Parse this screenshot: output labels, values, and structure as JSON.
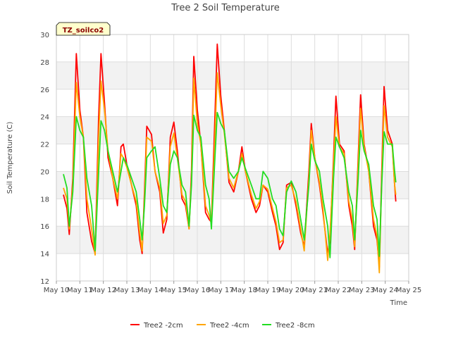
{
  "chart_data": {
    "type": "line",
    "title": "Tree 2 Soil Temperature",
    "xlabel": "Time",
    "ylabel": "Soil Temperature (C)",
    "annotation": "TZ_soilco2",
    "xlim": [
      0,
      15
    ],
    "ylim": [
      12,
      30
    ],
    "x_ticks": [
      {
        "x": 0,
        "label": "May 10"
      },
      {
        "x": 1,
        "label": "May 11"
      },
      {
        "x": 2,
        "label": "May 12"
      },
      {
        "x": 3,
        "label": "May 13"
      },
      {
        "x": 4,
        "label": "May 14"
      },
      {
        "x": 5,
        "label": "May 15"
      },
      {
        "x": 6,
        "label": "May 16"
      },
      {
        "x": 7,
        "label": "May 17"
      },
      {
        "x": 8,
        "label": "May 18"
      },
      {
        "x": 9,
        "label": "May 19"
      },
      {
        "x": 10,
        "label": "May 20"
      },
      {
        "x": 11,
        "label": "May 21"
      },
      {
        "x": 12,
        "label": "May 22"
      },
      {
        "x": 13,
        "label": "May 23"
      },
      {
        "x": 14,
        "label": "May 24"
      },
      {
        "x": 15,
        "label": "May 25"
      }
    ],
    "y_ticks": [
      12,
      14,
      16,
      18,
      20,
      22,
      24,
      26,
      28,
      30
    ],
    "grid": true,
    "legend_position": "bottom-center",
    "series": [
      {
        "name": "Tree2 -2cm",
        "color": "#ff0000",
        "points": [
          [
            0.3,
            18.3
          ],
          [
            0.45,
            17.3
          ],
          [
            0.55,
            15.4
          ],
          [
            0.7,
            19.5
          ],
          [
            0.85,
            28.6
          ],
          [
            1.0,
            24.5
          ],
          [
            1.15,
            22.5
          ],
          [
            1.3,
            17.0
          ],
          [
            1.5,
            14.9
          ],
          [
            1.65,
            14.0
          ],
          [
            1.8,
            24.0
          ],
          [
            1.9,
            28.6
          ],
          [
            2.05,
            25.0
          ],
          [
            2.2,
            21.0
          ],
          [
            2.4,
            19.5
          ],
          [
            2.6,
            17.5
          ],
          [
            2.75,
            21.8
          ],
          [
            2.85,
            22.0
          ],
          [
            3.0,
            20.5
          ],
          [
            3.2,
            19.0
          ],
          [
            3.4,
            17.5
          ],
          [
            3.55,
            15.0
          ],
          [
            3.65,
            14.0
          ],
          [
            3.75,
            18.5
          ],
          [
            3.85,
            23.3
          ],
          [
            4.05,
            22.7
          ],
          [
            4.2,
            20.0
          ],
          [
            4.4,
            18.5
          ],
          [
            4.55,
            15.5
          ],
          [
            4.7,
            16.5
          ],
          [
            4.85,
            22.5
          ],
          [
            5.0,
            23.6
          ],
          [
            5.15,
            21.5
          ],
          [
            5.35,
            18.0
          ],
          [
            5.5,
            17.5
          ],
          [
            5.65,
            15.8
          ],
          [
            5.75,
            20.0
          ],
          [
            5.85,
            28.4
          ],
          [
            6.0,
            24.5
          ],
          [
            6.15,
            22.0
          ],
          [
            6.35,
            17.0
          ],
          [
            6.5,
            16.5
          ],
          [
            6.6,
            16.3
          ],
          [
            6.75,
            24.0
          ],
          [
            6.85,
            29.3
          ],
          [
            7.0,
            25.5
          ],
          [
            7.15,
            23.0
          ],
          [
            7.35,
            19.2
          ],
          [
            7.55,
            18.5
          ],
          [
            7.75,
            20.0
          ],
          [
            7.9,
            21.8
          ],
          [
            8.05,
            20.0
          ],
          [
            8.3,
            18.0
          ],
          [
            8.5,
            17.0
          ],
          [
            8.65,
            17.5
          ],
          [
            8.8,
            19.0
          ],
          [
            9.0,
            18.5
          ],
          [
            9.2,
            17.0
          ],
          [
            9.35,
            16.0
          ],
          [
            9.5,
            14.3
          ],
          [
            9.65,
            14.8
          ],
          [
            9.8,
            19.0
          ],
          [
            10.0,
            19.2
          ],
          [
            10.2,
            17.5
          ],
          [
            10.4,
            15.5
          ],
          [
            10.55,
            14.5
          ],
          [
            10.75,
            20.0
          ],
          [
            10.85,
            23.5
          ],
          [
            11.0,
            21.0
          ],
          [
            11.2,
            19.0
          ],
          [
            11.35,
            17.0
          ],
          [
            11.55,
            14.0
          ],
          [
            11.65,
            15.0
          ],
          [
            11.8,
            21.0
          ],
          [
            11.9,
            25.5
          ],
          [
            12.05,
            22.0
          ],
          [
            12.25,
            21.5
          ],
          [
            12.45,
            17.5
          ],
          [
            12.6,
            16.0
          ],
          [
            12.7,
            14.3
          ],
          [
            12.85,
            21.0
          ],
          [
            12.95,
            25.6
          ],
          [
            13.1,
            22.0
          ],
          [
            13.3,
            20.0
          ],
          [
            13.5,
            16.0
          ],
          [
            13.65,
            15.0
          ],
          [
            13.75,
            13.0
          ],
          [
            13.85,
            20.0
          ],
          [
            13.95,
            26.2
          ],
          [
            14.1,
            23.0
          ],
          [
            14.3,
            22.0
          ],
          [
            14.4,
            19.0
          ],
          [
            14.45,
            17.8
          ]
        ]
      },
      {
        "name": "Tree2 -4cm",
        "color": "#ffa500",
        "points": [
          [
            0.3,
            18.8
          ],
          [
            0.45,
            18.0
          ],
          [
            0.55,
            15.8
          ],
          [
            0.7,
            19.0
          ],
          [
            0.85,
            26.5
          ],
          [
            1.0,
            24.0
          ],
          [
            1.15,
            22.5
          ],
          [
            1.3,
            18.0
          ],
          [
            1.5,
            15.8
          ],
          [
            1.65,
            13.9
          ],
          [
            1.8,
            22.5
          ],
          [
            1.9,
            26.6
          ],
          [
            2.05,
            24.5
          ],
          [
            2.2,
            21.5
          ],
          [
            2.4,
            19.5
          ],
          [
            2.6,
            18.0
          ],
          [
            2.75,
            21.3
          ],
          [
            2.85,
            21.0
          ],
          [
            3.0,
            20.3
          ],
          [
            3.2,
            19.0
          ],
          [
            3.4,
            17.8
          ],
          [
            3.55,
            15.5
          ],
          [
            3.65,
            14.2
          ],
          [
            3.75,
            18.0
          ],
          [
            3.85,
            22.5
          ],
          [
            4.05,
            22.2
          ],
          [
            4.2,
            20.0
          ],
          [
            4.4,
            18.8
          ],
          [
            4.55,
            16.2
          ],
          [
            4.7,
            16.8
          ],
          [
            4.85,
            21.8
          ],
          [
            5.0,
            22.8
          ],
          [
            5.15,
            21.0
          ],
          [
            5.35,
            18.3
          ],
          [
            5.5,
            17.8
          ],
          [
            5.65,
            15.8
          ],
          [
            5.75,
            19.5
          ],
          [
            5.85,
            26.8
          ],
          [
            6.0,
            23.5
          ],
          [
            6.15,
            22.0
          ],
          [
            6.35,
            17.5
          ],
          [
            6.5,
            16.8
          ],
          [
            6.6,
            16.2
          ],
          [
            6.75,
            22.5
          ],
          [
            6.85,
            27.2
          ],
          [
            7.0,
            24.8
          ],
          [
            7.15,
            22.8
          ],
          [
            7.35,
            19.5
          ],
          [
            7.55,
            18.8
          ],
          [
            7.75,
            20.0
          ],
          [
            7.9,
            21.3
          ],
          [
            8.05,
            20.0
          ],
          [
            8.3,
            18.3
          ],
          [
            8.5,
            17.3
          ],
          [
            8.65,
            17.8
          ],
          [
            8.8,
            19.0
          ],
          [
            9.0,
            18.7
          ],
          [
            9.2,
            17.3
          ],
          [
            9.35,
            16.3
          ],
          [
            9.5,
            14.8
          ],
          [
            9.65,
            15.0
          ],
          [
            9.8,
            18.8
          ],
          [
            10.0,
            19.0
          ],
          [
            10.2,
            17.8
          ],
          [
            10.4,
            15.8
          ],
          [
            10.55,
            14.2
          ],
          [
            10.75,
            19.5
          ],
          [
            10.85,
            23.0
          ],
          [
            11.0,
            21.0
          ],
          [
            11.2,
            19.2
          ],
          [
            11.35,
            17.3
          ],
          [
            11.55,
            13.5
          ],
          [
            11.65,
            15.5
          ],
          [
            11.8,
            20.5
          ],
          [
            11.9,
            24.0
          ],
          [
            12.05,
            21.8
          ],
          [
            12.25,
            21.3
          ],
          [
            12.45,
            17.8
          ],
          [
            12.6,
            16.5
          ],
          [
            12.7,
            14.5
          ],
          [
            12.85,
            20.5
          ],
          [
            12.95,
            24.6
          ],
          [
            13.1,
            21.8
          ],
          [
            13.3,
            20.0
          ],
          [
            13.5,
            16.5
          ],
          [
            13.65,
            15.3
          ],
          [
            13.75,
            12.6
          ],
          [
            13.85,
            19.5
          ],
          [
            13.95,
            24.8
          ],
          [
            14.1,
            22.5
          ],
          [
            14.3,
            21.8
          ],
          [
            14.4,
            19.0
          ],
          [
            14.45,
            18.3
          ]
        ]
      },
      {
        "name": "Tree2 -8cm",
        "color": "#22dd22",
        "points": [
          [
            0.3,
            19.8
          ],
          [
            0.45,
            18.8
          ],
          [
            0.55,
            16.0
          ],
          [
            0.7,
            18.5
          ],
          [
            0.85,
            24.0
          ],
          [
            1.0,
            23.0
          ],
          [
            1.15,
            22.5
          ],
          [
            1.3,
            19.5
          ],
          [
            1.5,
            17.5
          ],
          [
            1.65,
            14.2
          ],
          [
            1.8,
            20.0
          ],
          [
            1.9,
            23.7
          ],
          [
            2.05,
            23.0
          ],
          [
            2.2,
            21.5
          ],
          [
            2.4,
            20.0
          ],
          [
            2.6,
            18.5
          ],
          [
            2.75,
            20.0
          ],
          [
            2.85,
            21.0
          ],
          [
            3.0,
            20.5
          ],
          [
            3.2,
            19.5
          ],
          [
            3.4,
            18.5
          ],
          [
            3.55,
            16.5
          ],
          [
            3.65,
            15.0
          ],
          [
            3.75,
            17.5
          ],
          [
            3.85,
            21.0
          ],
          [
            4.05,
            21.5
          ],
          [
            4.2,
            21.8
          ],
          [
            4.4,
            19.5
          ],
          [
            4.55,
            17.5
          ],
          [
            4.7,
            17.0
          ],
          [
            4.85,
            20.5
          ],
          [
            5.0,
            21.5
          ],
          [
            5.15,
            21.0
          ],
          [
            5.35,
            19.0
          ],
          [
            5.5,
            18.5
          ],
          [
            5.65,
            16.0
          ],
          [
            5.75,
            19.0
          ],
          [
            5.85,
            24.1
          ],
          [
            6.0,
            23.0
          ],
          [
            6.15,
            22.5
          ],
          [
            6.35,
            19.0
          ],
          [
            6.5,
            18.0
          ],
          [
            6.6,
            15.8
          ],
          [
            6.75,
            21.0
          ],
          [
            6.85,
            24.3
          ],
          [
            7.0,
            23.5
          ],
          [
            7.15,
            23.0
          ],
          [
            7.35,
            20.0
          ],
          [
            7.55,
            19.5
          ],
          [
            7.75,
            20.0
          ],
          [
            7.9,
            21.0
          ],
          [
            8.05,
            20.2
          ],
          [
            8.3,
            19.0
          ],
          [
            8.5,
            18.0
          ],
          [
            8.65,
            18.0
          ],
          [
            8.8,
            20.0
          ],
          [
            9.0,
            19.5
          ],
          [
            9.2,
            18.0
          ],
          [
            9.35,
            17.5
          ],
          [
            9.5,
            15.8
          ],
          [
            9.65,
            15.3
          ],
          [
            9.8,
            18.5
          ],
          [
            10.0,
            19.3
          ],
          [
            10.2,
            18.5
          ],
          [
            10.4,
            16.5
          ],
          [
            10.55,
            15.0
          ],
          [
            10.75,
            19.0
          ],
          [
            10.85,
            22.0
          ],
          [
            11.0,
            20.8
          ],
          [
            11.2,
            20.0
          ],
          [
            11.35,
            18.0
          ],
          [
            11.55,
            16.0
          ],
          [
            11.65,
            13.7
          ],
          [
            11.8,
            19.5
          ],
          [
            11.9,
            22.5
          ],
          [
            12.05,
            21.8
          ],
          [
            12.25,
            21.0
          ],
          [
            12.45,
            18.5
          ],
          [
            12.6,
            17.5
          ],
          [
            12.7,
            15.0
          ],
          [
            12.85,
            19.5
          ],
          [
            12.95,
            23.0
          ],
          [
            13.1,
            21.5
          ],
          [
            13.3,
            20.5
          ],
          [
            13.5,
            17.5
          ],
          [
            13.65,
            16.5
          ],
          [
            13.75,
            13.8
          ],
          [
            13.85,
            19.0
          ],
          [
            13.95,
            22.9
          ],
          [
            14.1,
            22.0
          ],
          [
            14.3,
            22.0
          ],
          [
            14.4,
            20.0
          ],
          [
            14.45,
            19.2
          ]
        ]
      }
    ]
  }
}
